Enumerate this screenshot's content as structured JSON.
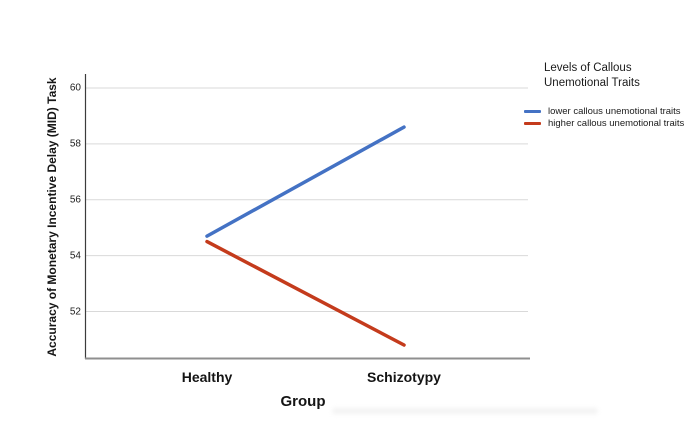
{
  "chart_data": {
    "type": "line",
    "title": "",
    "xlabel": "Group",
    "ylabel": "Accuracy of Monetary Incentive Delay (MID) Task",
    "categories": [
      "Healthy",
      "Schizotypy"
    ],
    "yticks": [
      60,
      58,
      56,
      54,
      52
    ],
    "ylim": [
      50.3,
      60.5
    ],
    "grid": "horizontal",
    "legend": {
      "position": "right",
      "title_lines": [
        "Levels of Callous",
        "Unemotional Traits"
      ]
    },
    "series": [
      {
        "name": "lower callous unemotional traits",
        "color": "#4472C4",
        "values": [
          54.7,
          58.6
        ]
      },
      {
        "name": "higher callous unemotional traits",
        "color": "#C43B1C",
        "values": [
          54.5,
          50.8
        ]
      }
    ],
    "style": {
      "grid_color": "#D9D9D9",
      "y_axis_color": "#3c3c3c",
      "x_axis_color": "#8f8f8f",
      "background": "#ffffff"
    }
  }
}
